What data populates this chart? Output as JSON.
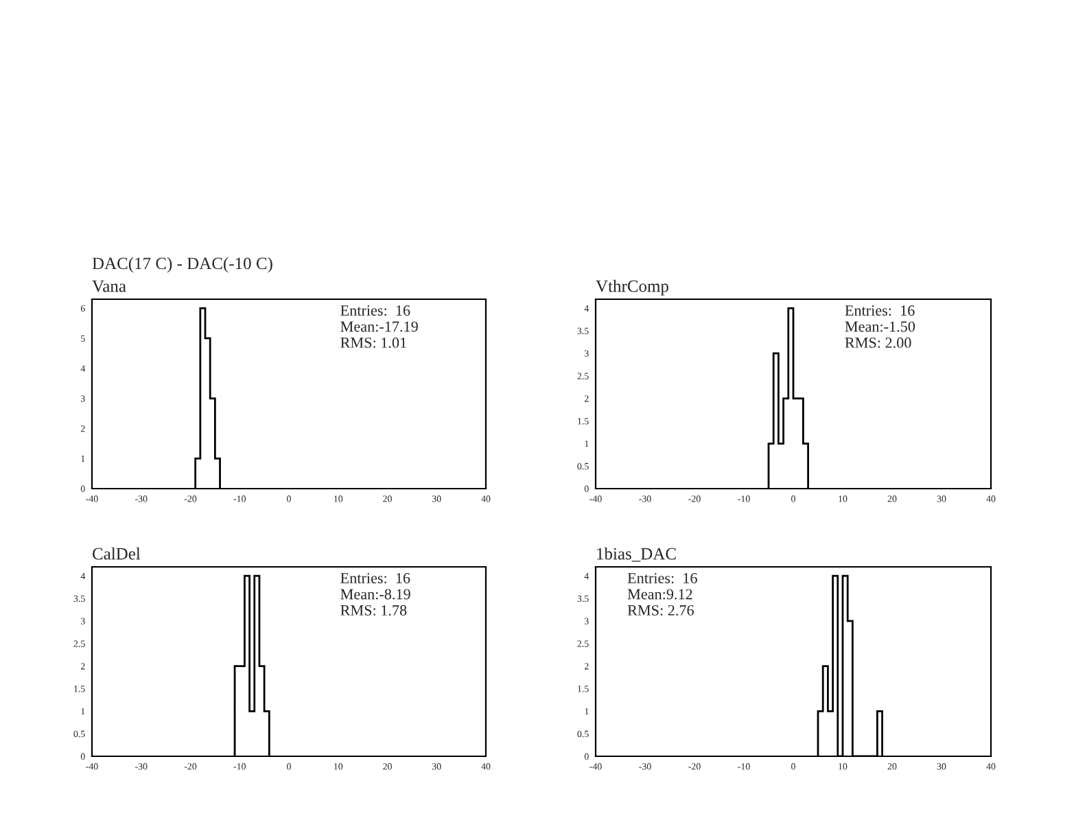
{
  "chart_data": [
    {
      "type": "histogram",
      "title": "DAC(17 C) - DAC(-10 C)",
      "subtitle": "Vana",
      "bins": [
        -19,
        -18,
        -17,
        -16,
        -15,
        -14
      ],
      "values": [
        1,
        6,
        5,
        3,
        1
      ],
      "color": "#000000",
      "xlim": [
        -40,
        40
      ],
      "xticks": [
        -40,
        -30,
        -20,
        -10,
        0,
        10,
        20,
        30,
        40
      ],
      "ylim": [
        0,
        6.3
      ],
      "yticks": [
        0,
        1,
        2,
        3,
        4,
        5,
        6
      ],
      "grid": false,
      "annotations": [
        "Entries:  16",
        "Mean:-17.19",
        "RMS: 1.01"
      ]
    },
    {
      "type": "histogram",
      "title": "VthrComp",
      "bins": [
        -5,
        -4,
        -3,
        -2,
        -1,
        0,
        1,
        2,
        3
      ],
      "values": [
        1,
        3,
        1,
        2,
        4,
        2,
        2,
        1
      ],
      "color": "#000000",
      "xlim": [
        -40,
        40
      ],
      "xticks": [
        -40,
        -30,
        -20,
        -10,
        0,
        10,
        20,
        30,
        40
      ],
      "ylim": [
        0,
        4.2
      ],
      "yticks": [
        0,
        0.5,
        1,
        1.5,
        2,
        2.5,
        3,
        3.5,
        4
      ],
      "grid": false,
      "annotations": [
        "Entries:  16",
        "Mean:-1.50",
        "RMS: 2.00"
      ]
    },
    {
      "type": "histogram",
      "title": "CalDel",
      "bins": [
        -11,
        -10,
        -9,
        -8,
        -7,
        -6,
        -5,
        -4
      ],
      "values": [
        2,
        2,
        4,
        1,
        4,
        2,
        1
      ],
      "color": "#000000",
      "xlim": [
        -40,
        40
      ],
      "xticks": [
        -40,
        -30,
        -20,
        -10,
        0,
        10,
        20,
        30,
        40
      ],
      "ylim": [
        0,
        4.2
      ],
      "yticks": [
        0,
        0.5,
        1,
        1.5,
        2,
        2.5,
        3,
        3.5,
        4
      ],
      "grid": false,
      "annotations": [
        "Entries:  16",
        "Mean:-8.19",
        "RMS: 1.78"
      ]
    },
    {
      "type": "histogram",
      "title": "1bias_DAC",
      "bins": [
        5,
        6,
        7,
        8,
        9,
        10,
        11,
        12,
        13,
        14,
        15,
        16,
        17,
        18
      ],
      "values": [
        1,
        2,
        1,
        4,
        0,
        4,
        3,
        0,
        0,
        0,
        0,
        0,
        1
      ],
      "color": "#000000",
      "xlim": [
        -40,
        40
      ],
      "xticks": [
        -40,
        -30,
        -20,
        -10,
        0,
        10,
        20,
        30,
        40
      ],
      "ylim": [
        0,
        4.2
      ],
      "yticks": [
        0,
        0.5,
        1,
        1.5,
        2,
        2.5,
        3,
        3.5,
        4
      ],
      "grid": false,
      "annotations": [
        "Entries:  16",
        "Mean:9.12",
        "RMS: 2.76"
      ]
    }
  ]
}
